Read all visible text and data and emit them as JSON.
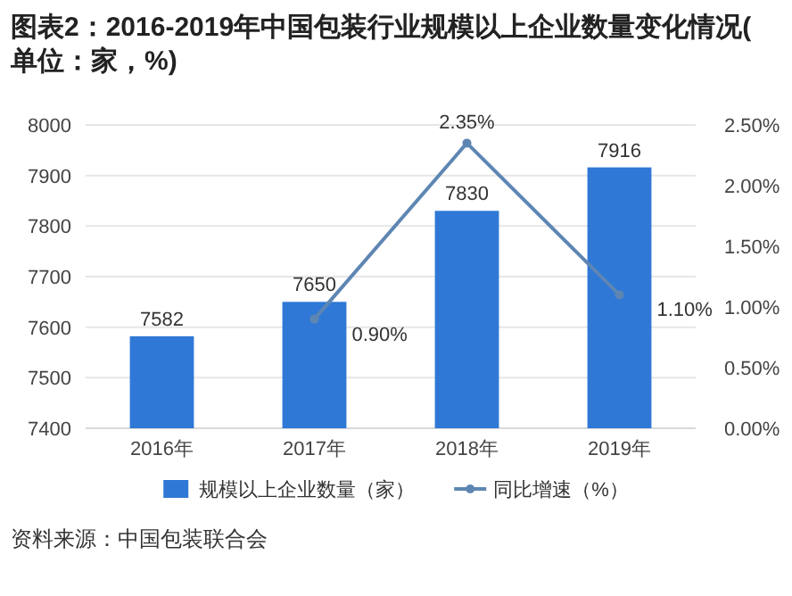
{
  "chart_data": {
    "type": "bar",
    "title": "图表2：2016-2019年中国包装行业规模以上企业数量变化情况(单位：家，%)",
    "categories": [
      "2016年",
      "2017年",
      "2018年",
      "2019年"
    ],
    "series": [
      {
        "name": "规模以上企业数量（家）",
        "color": "#2f78d6",
        "values": [
          7582,
          7650,
          7830,
          7916
        ],
        "value_labels": [
          "7582",
          "7650",
          "7830",
          "7916"
        ]
      },
      {
        "name": "同比增速（%）",
        "type": "line",
        "axis": "y2",
        "color": "#5e86b3",
        "values": [
          null,
          0.9,
          2.35,
          1.1
        ],
        "value_labels": [
          null,
          "0.90%",
          "2.35%",
          "1.10%"
        ]
      }
    ],
    "ylim": [
      7400,
      8000
    ],
    "yticks": [
      7400,
      7500,
      7600,
      7700,
      7800,
      7900,
      8000
    ],
    "y2lim": [
      0,
      2.5
    ],
    "y2ticks": [
      {
        "value": 0,
        "label": "0.00%"
      },
      {
        "value": 0.5,
        "label": "0.50%"
      },
      {
        "value": 1,
        "label": "1.00%"
      },
      {
        "value": 1.5,
        "label": "1.50%"
      },
      {
        "value": 2,
        "label": "2.00%"
      },
      {
        "value": 2.5,
        "label": "2.50%"
      }
    ],
    "grid": "y",
    "legend": "bottom",
    "marker": "circle",
    "line_style": "solid",
    "annotations": [
      "资料来源：中国包装联合会"
    ]
  }
}
